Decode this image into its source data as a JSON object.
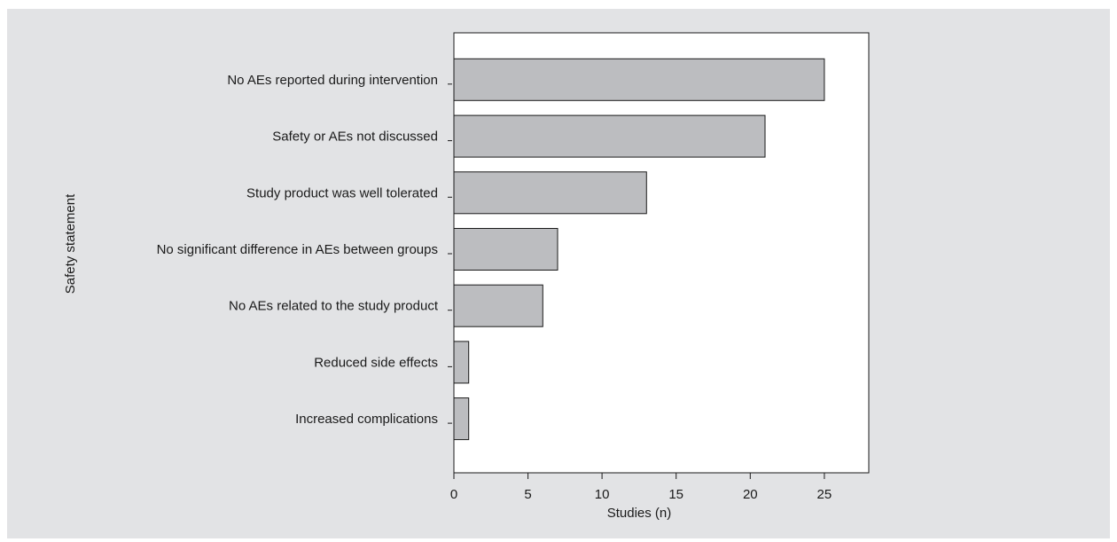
{
  "chart_data": {
    "type": "bar",
    "orientation": "horizontal",
    "categories": [
      "No AEs reported during intervention",
      "Safety or AEs not discussed",
      "Study product was well tolerated",
      "No significant difference in AEs between groups",
      "No AEs related to the study product",
      "Reduced side effects",
      "Increased complications"
    ],
    "values": [
      25,
      21,
      13,
      7,
      6,
      1,
      1
    ],
    "xlabel": "Studies (n)",
    "ylabel": "Safety statement",
    "xlim": [
      0,
      28
    ],
    "xticks": [
      0,
      5,
      10,
      15,
      20,
      25
    ],
    "grid": false,
    "legend": "none",
    "colors": {
      "bar_fill": "#bcbdc0",
      "bar_stroke": "#1a1a1a",
      "plot_bg": "#ffffff",
      "panel_bg": "#e2e3e5"
    }
  }
}
